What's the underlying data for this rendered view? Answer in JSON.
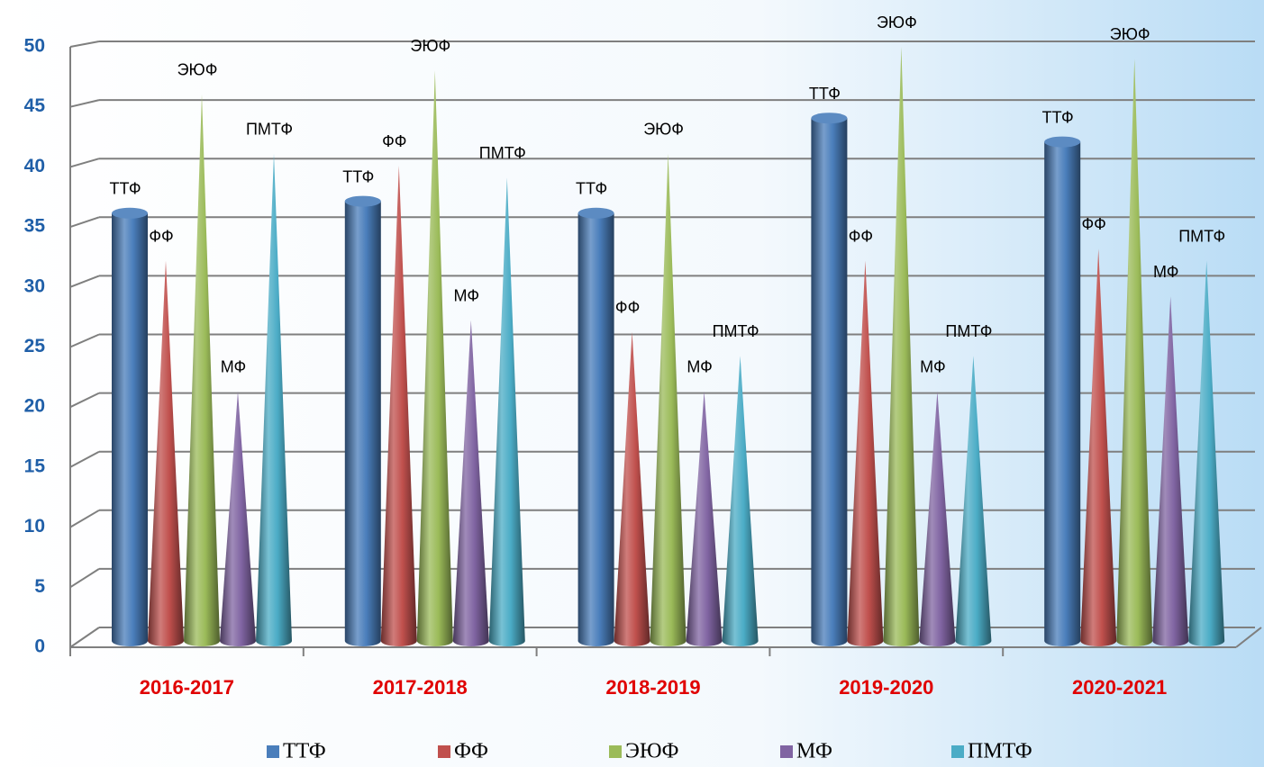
{
  "chart_data": {
    "type": "bar",
    "categories": [
      "2016-2017",
      "2017-2018",
      "2018-2019",
      "2019-2020",
      "2020-2021"
    ],
    "series": [
      {
        "name": "ТТФ",
        "color": "#4a7ebb",
        "values": [
          36,
          37,
          36,
          44,
          42
        ]
      },
      {
        "name": "ФФ",
        "color": "#c0504d",
        "values": [
          32,
          40,
          26,
          32,
          33
        ]
      },
      {
        "name": "ЭЮФ",
        "color": "#9bbb59",
        "values": [
          46,
          48,
          41,
          50,
          49
        ]
      },
      {
        "name": "МФ",
        "color": "#8064a2",
        "values": [
          21,
          27,
          21,
          21,
          29
        ]
      },
      {
        "name": "ПМТФ",
        "color": "#4bacc6",
        "values": [
          41,
          39,
          24,
          24,
          32
        ]
      }
    ],
    "ylim": [
      0,
      50
    ],
    "yticks": [
      0,
      5,
      10,
      15,
      20,
      25,
      30,
      35,
      40,
      45,
      50
    ],
    "grid": true
  }
}
